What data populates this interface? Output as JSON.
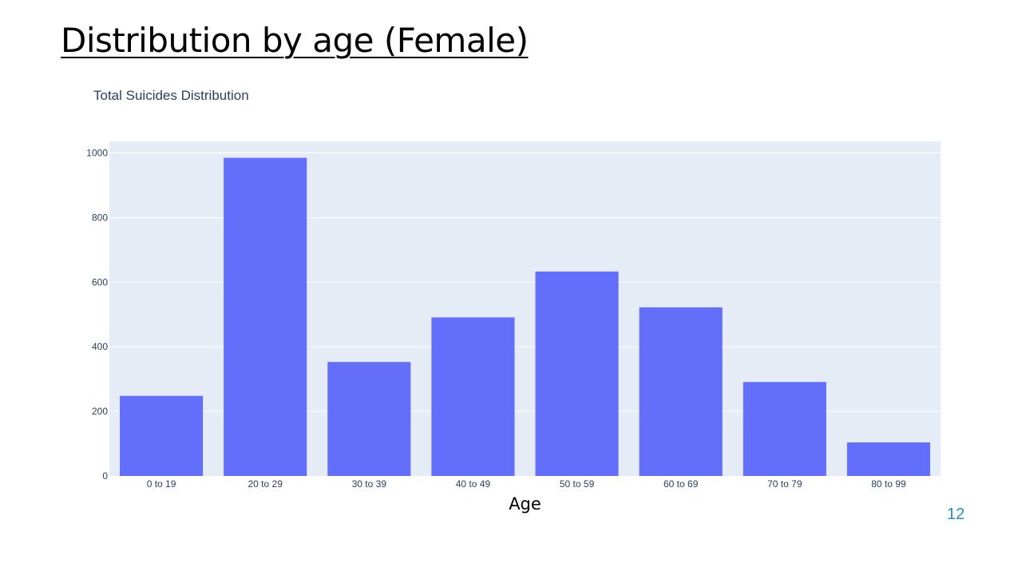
{
  "slide": {
    "title": "Distribution by age (Female)",
    "page_number": "12"
  },
  "colors": {
    "bar": "#636efa",
    "plot_bg": "#e5ecf6",
    "grid": "#ffffff",
    "tick_text": "#2a3f5f",
    "page_number": "#2e8bc0"
  },
  "chart_data": {
    "type": "bar",
    "title": "Total Suicides Distribution",
    "xlabel": "Age",
    "ylabel": "",
    "categories": [
      "0 to 19",
      "20 to 29",
      "30 to 39",
      "40 to 49",
      "50 to 59",
      "60 to 69",
      "70 to 79",
      "80 to 99"
    ],
    "values": [
      248,
      985,
      353,
      491,
      633,
      522,
      291,
      104
    ],
    "ylim": [
      0,
      1036
    ],
    "yticks": [
      0,
      200,
      400,
      600,
      800,
      1000
    ],
    "grid": true,
    "legend": "none"
  }
}
